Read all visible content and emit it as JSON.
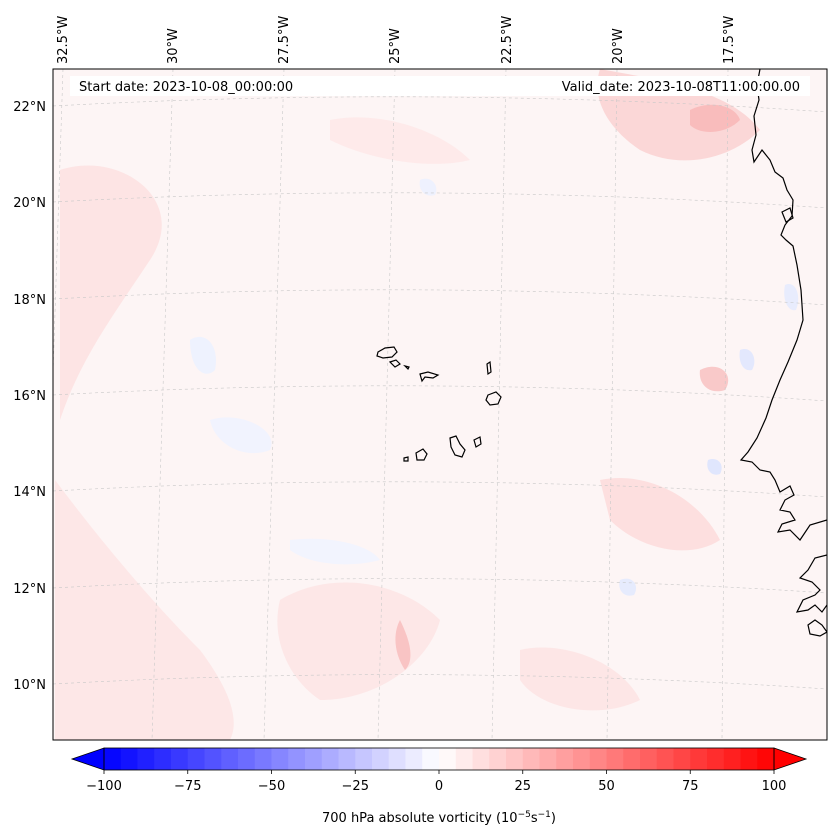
{
  "map": {
    "start_date_label": "Start date: 2023-10-08_00:00:00",
    "valid_date_label": "Valid_date: 2023-10-08T11:00:00.00",
    "lon_labels": [
      "32.5°W",
      "30°W",
      "27.5°W",
      "25°W",
      "22.5°W",
      "20°W",
      "17.5°W"
    ],
    "lat_labels": [
      "22°N",
      "20°N",
      "18°N",
      "16°N",
      "14°N",
      "12°N",
      "10°N"
    ],
    "background_color": "#fdf4f4"
  },
  "colorbar": {
    "title_main": "700 hPa absolute vorticity (10",
    "title_exp1": "−5",
    "title_mid": "s",
    "title_exp2": "−1",
    "title_end": ")",
    "tick_labels": [
      "−100",
      "−75",
      "−50",
      "−25",
      "0",
      "25",
      "50",
      "75",
      "100"
    ],
    "min": -100,
    "max": 100,
    "step": 5,
    "low_color": "#0000ff",
    "high_color": "#ff0000"
  }
}
